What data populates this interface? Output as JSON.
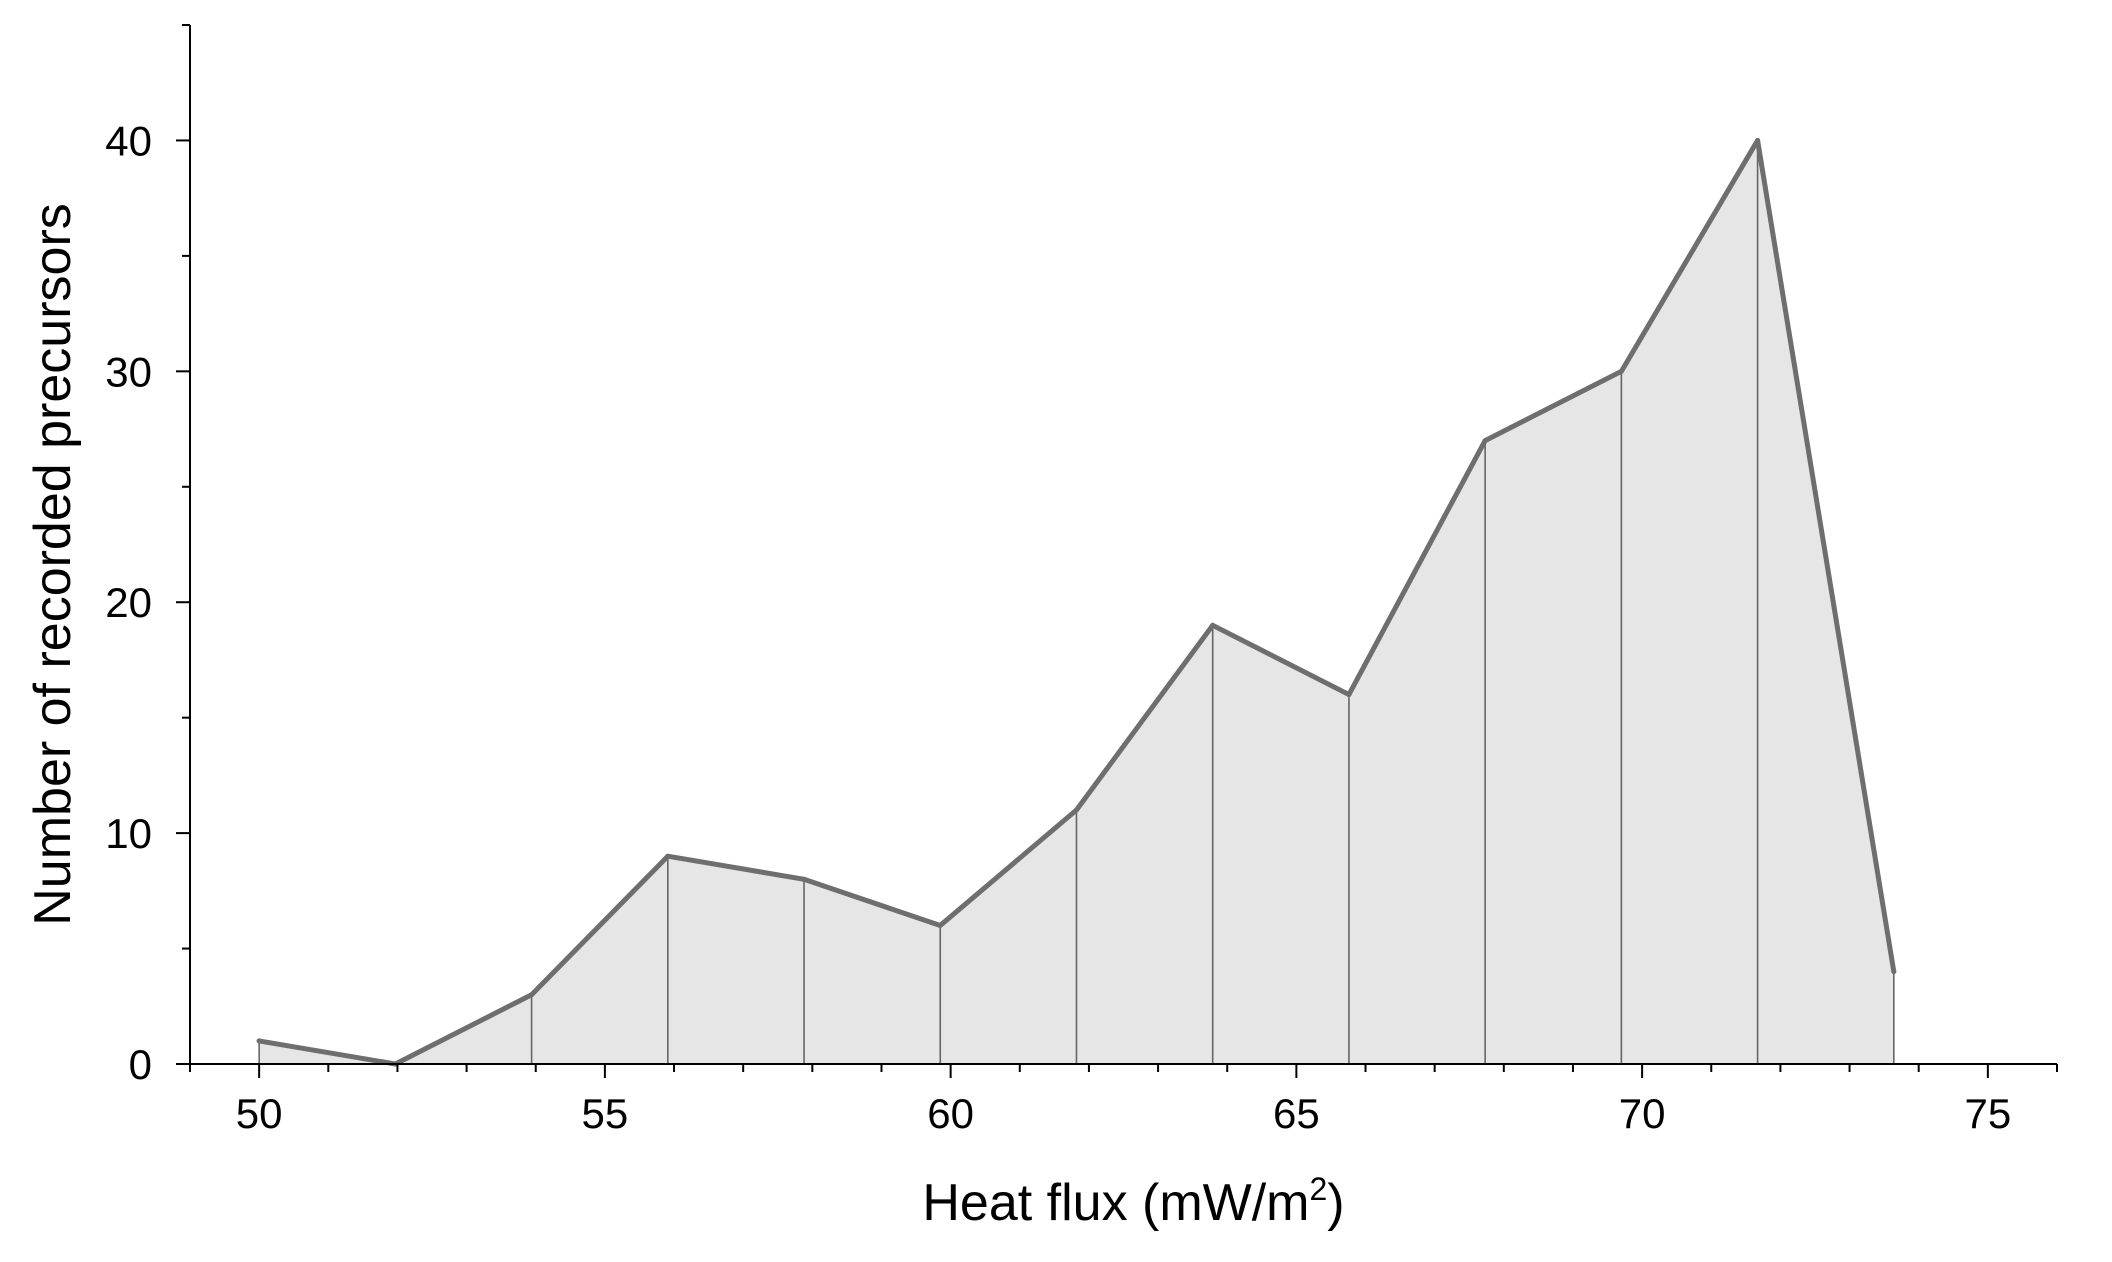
{
  "chart_data": {
    "type": "area",
    "title": "",
    "xlabel": "Heat flux (mW/m",
    "xlabel_superscript": "2",
    "xlabel_suffix": ")",
    "ylabel": "Number of recorded precursors",
    "xlim": [
      49,
      76
    ],
    "ylim": [
      0,
      45
    ],
    "x_ticks": [
      50,
      55,
      60,
      65,
      70,
      75
    ],
    "x_tick_labels": [
      "50",
      "55",
      "60",
      "65",
      "70",
      "75"
    ],
    "x_minor_step": 1,
    "y_ticks": [
      0,
      10,
      20,
      30,
      40
    ],
    "y_tick_labels": [
      "0",
      "10",
      "20",
      "30",
      "40"
    ],
    "y_minor_step": 5,
    "grid": false,
    "legend": "none",
    "series": [
      {
        "x": [
          50,
          51.97,
          53.94,
          55.91,
          57.88,
          59.85,
          61.82,
          63.79,
          65.76,
          67.73,
          69.7,
          71.67,
          73.64
        ],
        "values": [
          1,
          0,
          3,
          9,
          8,
          6,
          11,
          19,
          16,
          27,
          30,
          40,
          4
        ]
      }
    ],
    "colors": {
      "line": "#6e6e6e",
      "fill": "#e6e6e6",
      "drop_lines": "#666666",
      "axis": "#000000"
    }
  }
}
